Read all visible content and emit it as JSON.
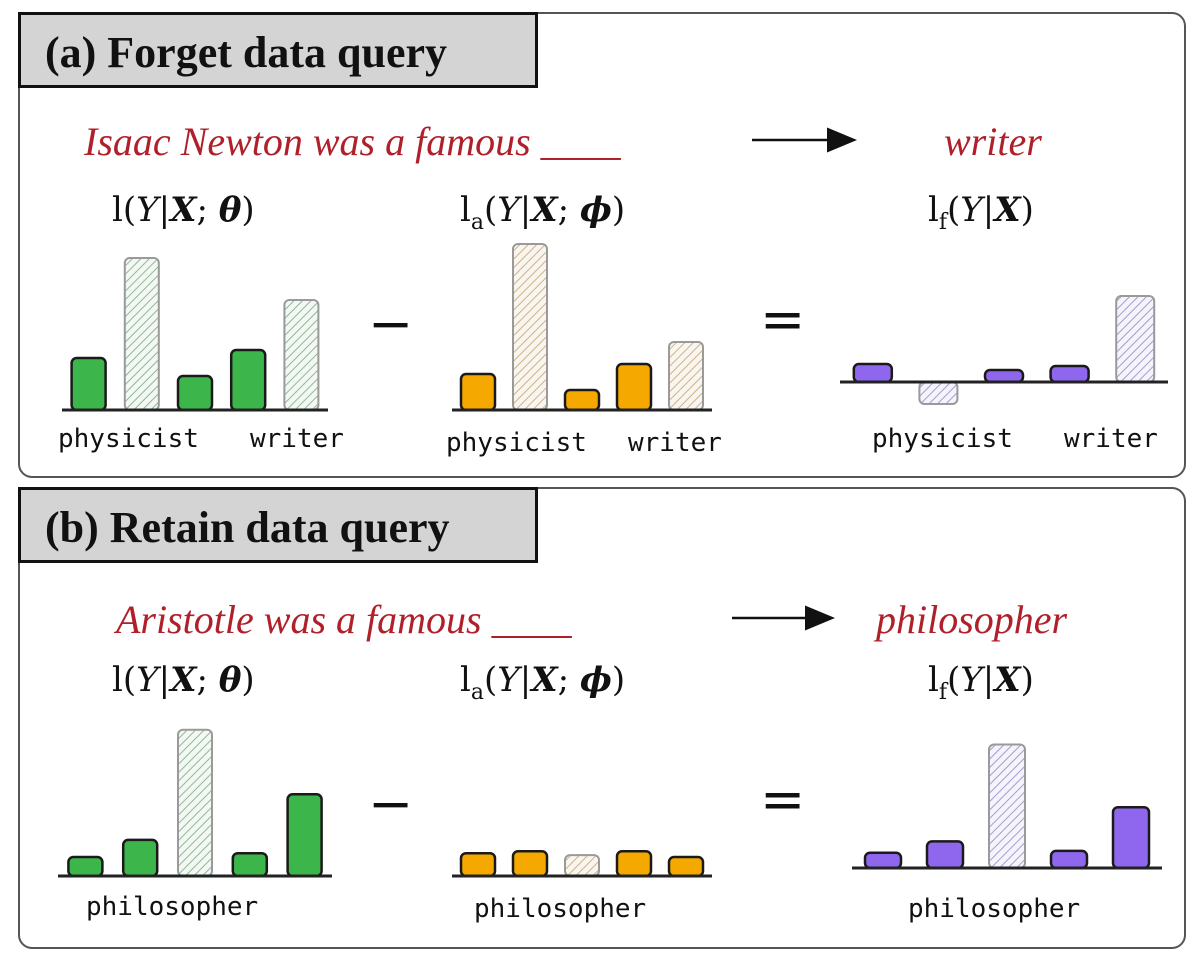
{
  "panels": [
    {
      "header": "(a) Forget data query",
      "prompt": "Isaac Newton was a famous ____",
      "target": "writer",
      "formulas": {
        "model": "l(Y|X; θ)",
        "assistant": "l_a(Y|X; ϕ)",
        "result": "l_f(Y|X)"
      },
      "minus": "−",
      "equals": "=",
      "charts": {
        "model": {
          "labels": [
            "physicist",
            "writer"
          ],
          "values": [
            2.6,
            7.6,
            1.7,
            3.0,
            5.5
          ],
          "hatched": [
            1,
            4
          ],
          "color": "#3cb54a"
        },
        "assistant": {
          "labels": [
            "physicist",
            "writer"
          ],
          "values": [
            1.8,
            8.3,
            1.0,
            2.3,
            3.4
          ],
          "hatched": [
            1,
            4
          ],
          "color": "#f5a800"
        },
        "result": {
          "labels": [
            "physicist",
            "writer"
          ],
          "values": [
            0.9,
            -1.1,
            0.6,
            0.8,
            4.3
          ],
          "hatched": [
            1,
            4
          ],
          "color": "#8f67ee"
        }
      }
    },
    {
      "header": "(b) Retain data query",
      "prompt": "Aristotle was a famous ____",
      "target": "philosopher",
      "formulas": {
        "model": "l(Y|X; θ)",
        "assistant": "l_a(Y|X; ϕ)",
        "result": "l_f(Y|X)"
      },
      "minus": "−",
      "equals": "=",
      "charts": {
        "model": {
          "labels": [
            "philosopher"
          ],
          "values": [
            1.0,
            1.9,
            7.7,
            1.2,
            4.3
          ],
          "hatched": [
            2
          ],
          "color": "#3cb54a"
        },
        "assistant": {
          "labels": [
            "philosopher"
          ],
          "values": [
            1.2,
            1.3,
            1.1,
            1.3,
            1.0
          ],
          "hatched": [
            2
          ],
          "color": "#f5a800"
        },
        "result": {
          "labels": [
            "philosopher"
          ],
          "values": [
            0.8,
            1.4,
            6.5,
            0.9,
            3.2
          ],
          "hatched": [
            2
          ],
          "color": "#8f67ee"
        }
      }
    }
  ]
}
